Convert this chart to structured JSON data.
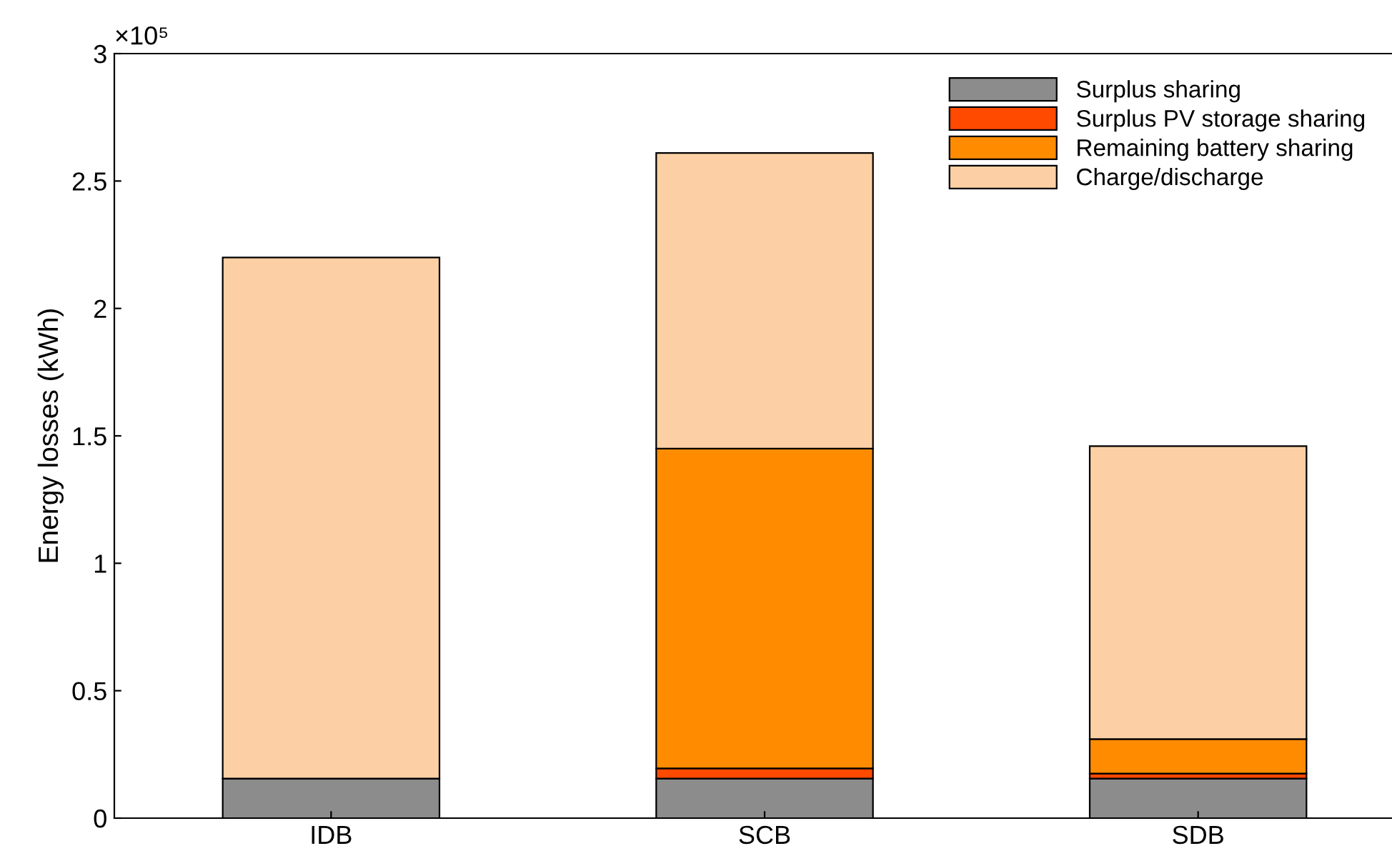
{
  "chart_data": {
    "type": "bar",
    "stacked": true,
    "ylabel": "Energy losses (kWh)",
    "categories": [
      "IDB",
      "SCB",
      "SDB"
    ],
    "series": [
      {
        "name": "Surplus sharing",
        "color": "#8c8c8c",
        "values": [
          0.155,
          0.155,
          0.155
        ]
      },
      {
        "name": "Surplus PV storage sharing",
        "color": "#ff4a00",
        "values": [
          0,
          0.04,
          0.02
        ]
      },
      {
        "name": "Remaining battery sharing",
        "color": "#ff8c00",
        "values": [
          0,
          1.255,
          0.135
        ]
      },
      {
        "name": "Charge/discharge",
        "color": "#fcd0a4",
        "values": [
          2.045,
          1.16,
          1.15
        ]
      }
    ],
    "ylim": [
      0,
      3
    ],
    "yticks": [
      0,
      0.5,
      1,
      1.5,
      2,
      2.5,
      3
    ],
    "annotations": [
      "×10⁵"
    ],
    "legend": "top right",
    "grid": false
  }
}
